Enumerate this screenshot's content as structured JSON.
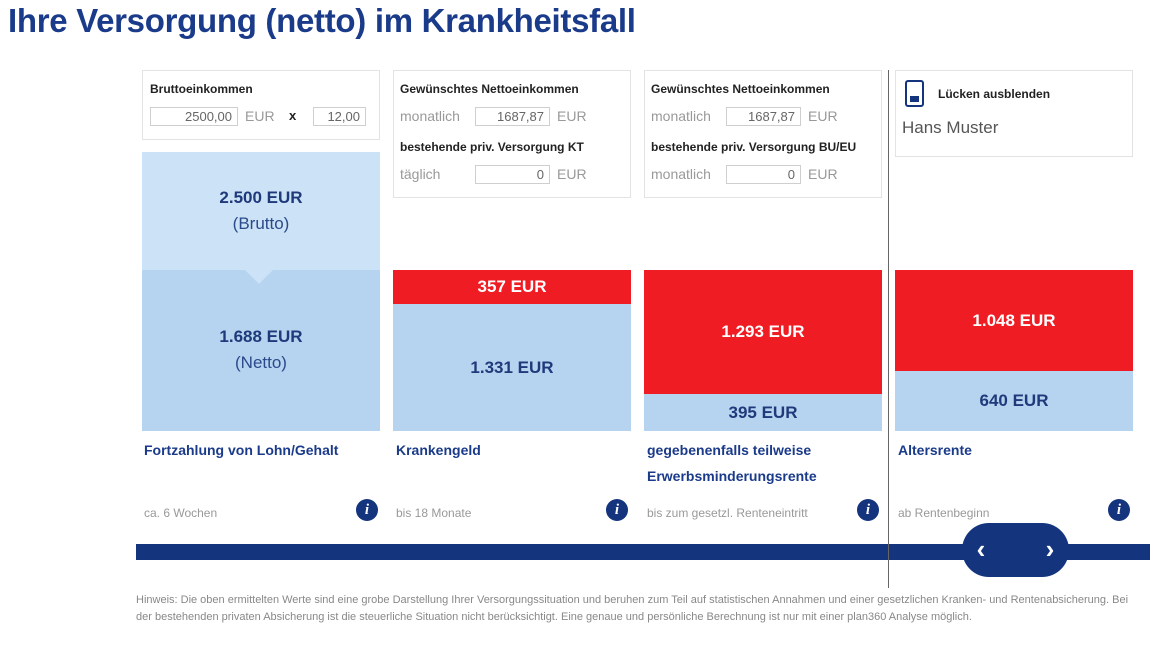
{
  "title": "Ihre Versorgung (netto) im Krankheitsfall",
  "col1": {
    "label": "Bruttoeinkommen",
    "input_value": "2500,00",
    "currency": "EUR",
    "times": "x",
    "months_value": "12,00",
    "brutto_value": "2.500 EUR",
    "brutto_sub": "(Brutto)",
    "netto_value": "1.688 EUR",
    "netto_sub": "(Netto)",
    "category": "Fortzahlung von Lohn/Gehalt",
    "duration": "ca. 6 Wochen"
  },
  "col2": {
    "label": "Gewünschtes Nettoeinkommen",
    "period_label": "monatlich",
    "input_value": "1687,87",
    "currency": "EUR",
    "label2": "bestehende priv. Versorgung KT",
    "period2_label": "täglich",
    "input2_value": "0",
    "currency2": "EUR",
    "gap_value": "357 EUR",
    "covered_value": "1.331 EUR",
    "category": "Krankengeld",
    "duration": "bis 18 Monate"
  },
  "col3": {
    "label": "Gewünschtes Nettoeinkommen",
    "period_label": "monatlich",
    "input_value": "1687,87",
    "currency": "EUR",
    "label2": "bestehende priv. Versorgung BU/EU",
    "period2_label": "monatlich",
    "input2_value": "0",
    "currency2": "EUR",
    "gap_value": "1.293 EUR",
    "covered_value": "395 EUR",
    "category_line1": "gegebenenfalls teilweise",
    "category_line2": "Erwerbsminderungsrente",
    "duration": "bis zum gesetzl. Renteneintritt"
  },
  "col4": {
    "toggle_label": "Lücken ausblenden",
    "name": "Hans Muster",
    "gap_value": "1.048 EUR",
    "covered_value": "640 EUR",
    "category": "Altersrente",
    "duration": "ab Rentenbeginn"
  },
  "info_icon": "i",
  "nav": {
    "prev": "‹",
    "next": "›"
  },
  "note": "Hinweis: Die oben ermittelten Werte sind eine grobe Darstellung Ihrer Versorgungssituation und beruhen zum Teil auf statistischen Annahmen und einer gesetzlichen Kranken- und Rentenabsicherung. Bei der bestehenden privaten Absicherung ist die steuerliche Situation nicht berücksichtigt. Eine genaue und persönliche Berechnung ist nur mit einer plan360 Analyse möglich.",
  "colors": {
    "navy": "#14347e",
    "gap_red": "#f01c23",
    "covered_blue": "#b6d3f0",
    "brutto_blue": "#cce2f6"
  }
}
